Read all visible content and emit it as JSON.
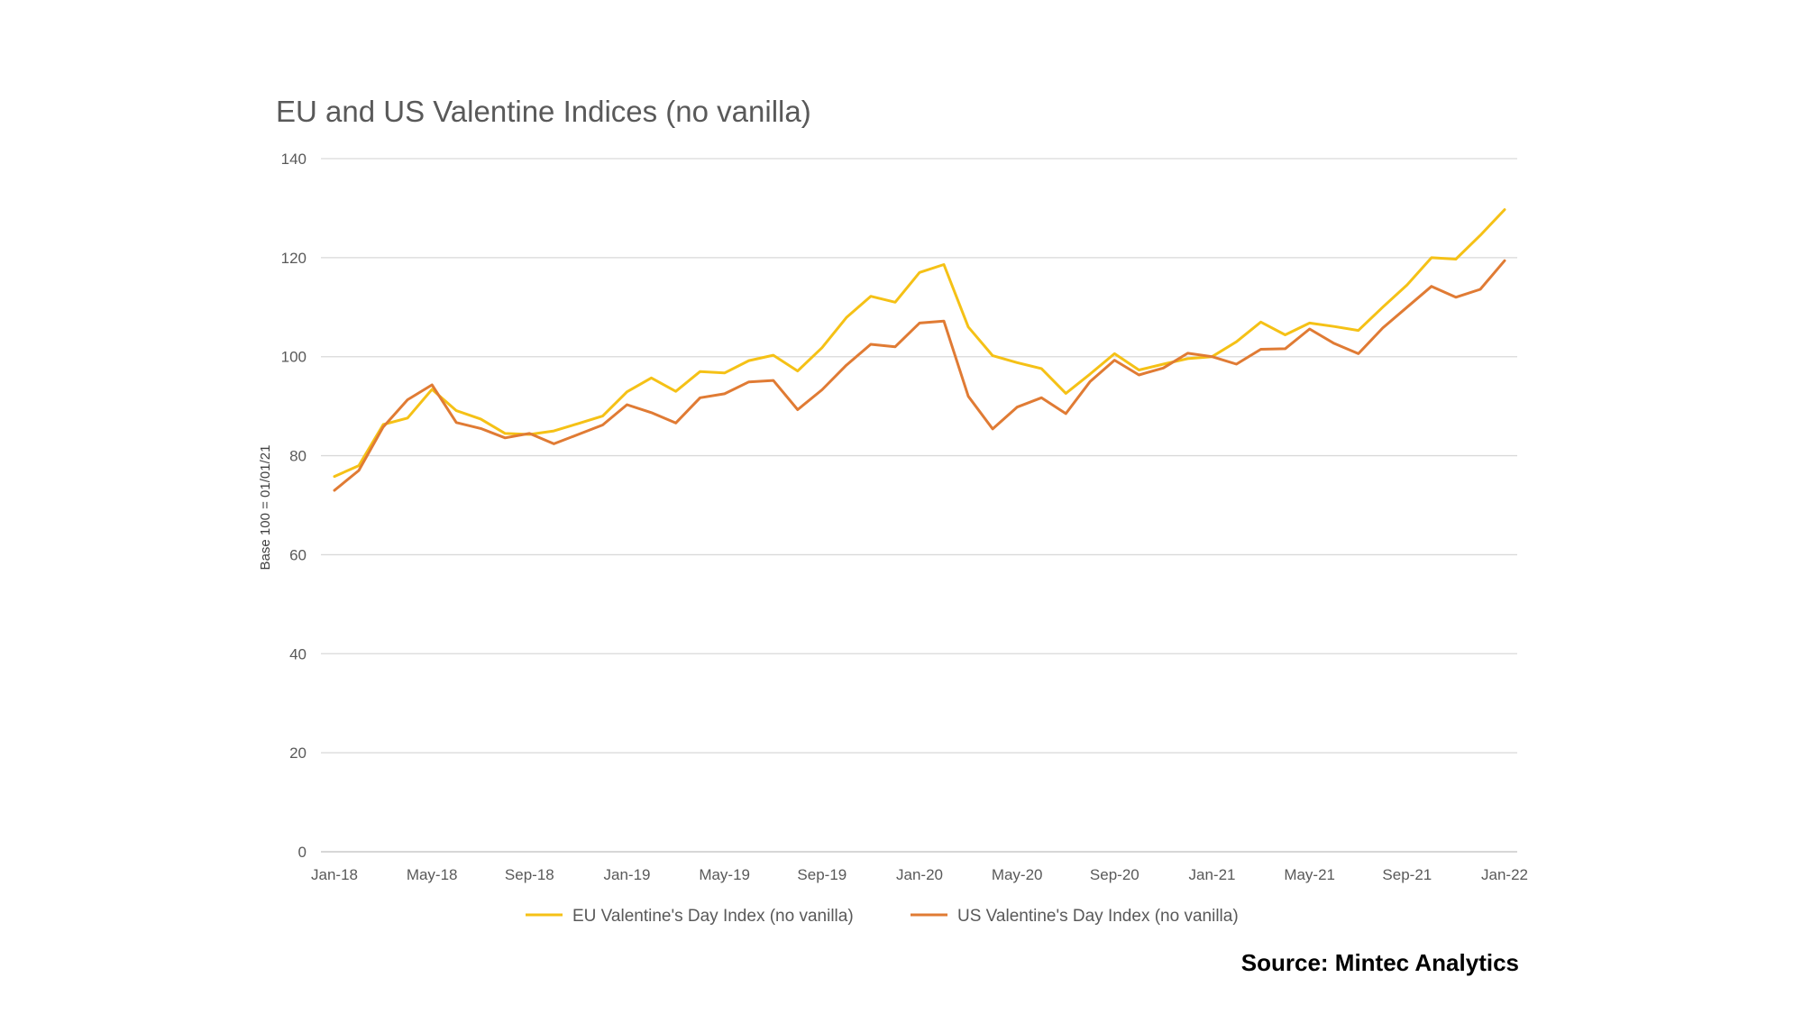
{
  "chart_data": {
    "type": "line",
    "title": "EU and US Valentine Indices (no vanilla)",
    "ylabel": "Base 100 = 01/01/21",
    "xlabel": "",
    "ylim": [
      0,
      140
    ],
    "yticks": [
      0,
      20,
      40,
      60,
      80,
      100,
      120,
      140
    ],
    "grid": true,
    "legend_position": "bottom",
    "source": "Source: Mintec Analytics",
    "x_tick_labels": [
      "Jan-18",
      "May-18",
      "Sep-18",
      "Jan-19",
      "May-19",
      "Sep-19",
      "Jan-20",
      "May-20",
      "Sep-20",
      "Jan-21",
      "May-21",
      "Sep-21",
      "Jan-22"
    ],
    "x": [
      "Jan-18",
      "Feb-18",
      "Mar-18",
      "Apr-18",
      "May-18",
      "Jun-18",
      "Jul-18",
      "Aug-18",
      "Sep-18",
      "Oct-18",
      "Nov-18",
      "Dec-18",
      "Jan-19",
      "Feb-19",
      "Mar-19",
      "Apr-19",
      "May-19",
      "Jun-19",
      "Jul-19",
      "Aug-19",
      "Sep-19",
      "Oct-19",
      "Nov-19",
      "Dec-19",
      "Jan-20",
      "Feb-20",
      "Mar-20",
      "Apr-20",
      "May-20",
      "Jun-20",
      "Jul-20",
      "Aug-20",
      "Sep-20",
      "Oct-20",
      "Nov-20",
      "Dec-20",
      "Jan-21",
      "Feb-21",
      "Mar-21",
      "Apr-21",
      "May-21",
      "Jun-21",
      "Jul-21",
      "Aug-21",
      "Sep-21",
      "Oct-21",
      "Nov-21",
      "Dec-21",
      "Jan-22"
    ],
    "series": [
      {
        "name": "EU Valentine's Day Index (no vanilla)",
        "color": "#f5c116",
        "values": [
          75.8,
          78,
          86.3,
          87.6,
          93.4,
          89.1,
          87.4,
          84.5,
          84.3,
          85,
          86.5,
          88,
          92.9,
          95.7,
          93,
          97,
          96.7,
          99.2,
          100.3,
          97.1,
          101.8,
          107.9,
          112.2,
          111,
          117,
          118.6,
          106,
          100.2,
          98.8,
          97.6,
          92.6,
          96.5,
          100.6,
          97.3,
          98.5,
          99.6,
          100,
          103,
          107,
          104.4,
          106.8,
          106.1,
          105.3,
          110,
          114.5,
          120,
          119.7,
          124.5,
          129.7
        ]
      },
      {
        "name": "US Valentine's Day Index (no vanilla)",
        "color": "#e07b34",
        "values": [
          73,
          77,
          85.8,
          91.3,
          94.3,
          86.7,
          85.5,
          83.6,
          84.5,
          82.4,
          84.3,
          86.2,
          90.3,
          88.7,
          86.6,
          91.7,
          92.5,
          94.9,
          95.2,
          89.3,
          93.3,
          98.3,
          102.5,
          102,
          106.8,
          107.2,
          92,
          85.4,
          89.8,
          91.7,
          88.5,
          95,
          99.3,
          96.3,
          97.7,
          100.7,
          100,
          98.5,
          101.5,
          101.6,
          105.6,
          102.7,
          100.6,
          105.8,
          110,
          114.2,
          112,
          113.6,
          119.4
        ]
      }
    ]
  }
}
